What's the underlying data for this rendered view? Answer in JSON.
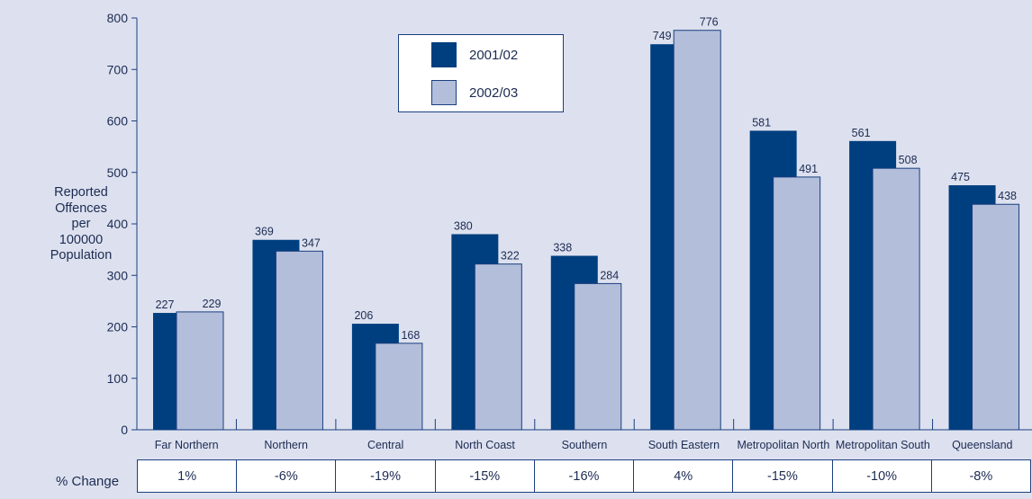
{
  "chart_data": {
    "type": "bar",
    "ylabel": [
      "Reported",
      "Offences",
      "per",
      "100000",
      "Population"
    ],
    "ylim": [
      0,
      800
    ],
    "yticks": [
      0,
      100,
      200,
      300,
      400,
      500,
      600,
      700,
      800
    ],
    "categories": [
      "Far Northern",
      "Northern",
      "Central",
      "North Coast",
      "Southern",
      "South Eastern",
      "Metropolitan North",
      "Metropolitan South",
      "Queensland"
    ],
    "series": [
      {
        "name": "2001/02",
        "color": "#003f7f",
        "values": [
          227,
          369,
          206,
          380,
          338,
          749,
          581,
          561,
          475
        ]
      },
      {
        "name": "2002/03",
        "color": "#b3bedb",
        "values": [
          229,
          347,
          168,
          322,
          284,
          776,
          491,
          508,
          438
        ]
      }
    ],
    "legend_position": "top-center",
    "percent_change": {
      "label": "% Change",
      "values": [
        "1%",
        "-6%",
        "-19%",
        "-15%",
        "-16%",
        "4%",
        "-15%",
        "-10%",
        "-8%"
      ]
    }
  }
}
